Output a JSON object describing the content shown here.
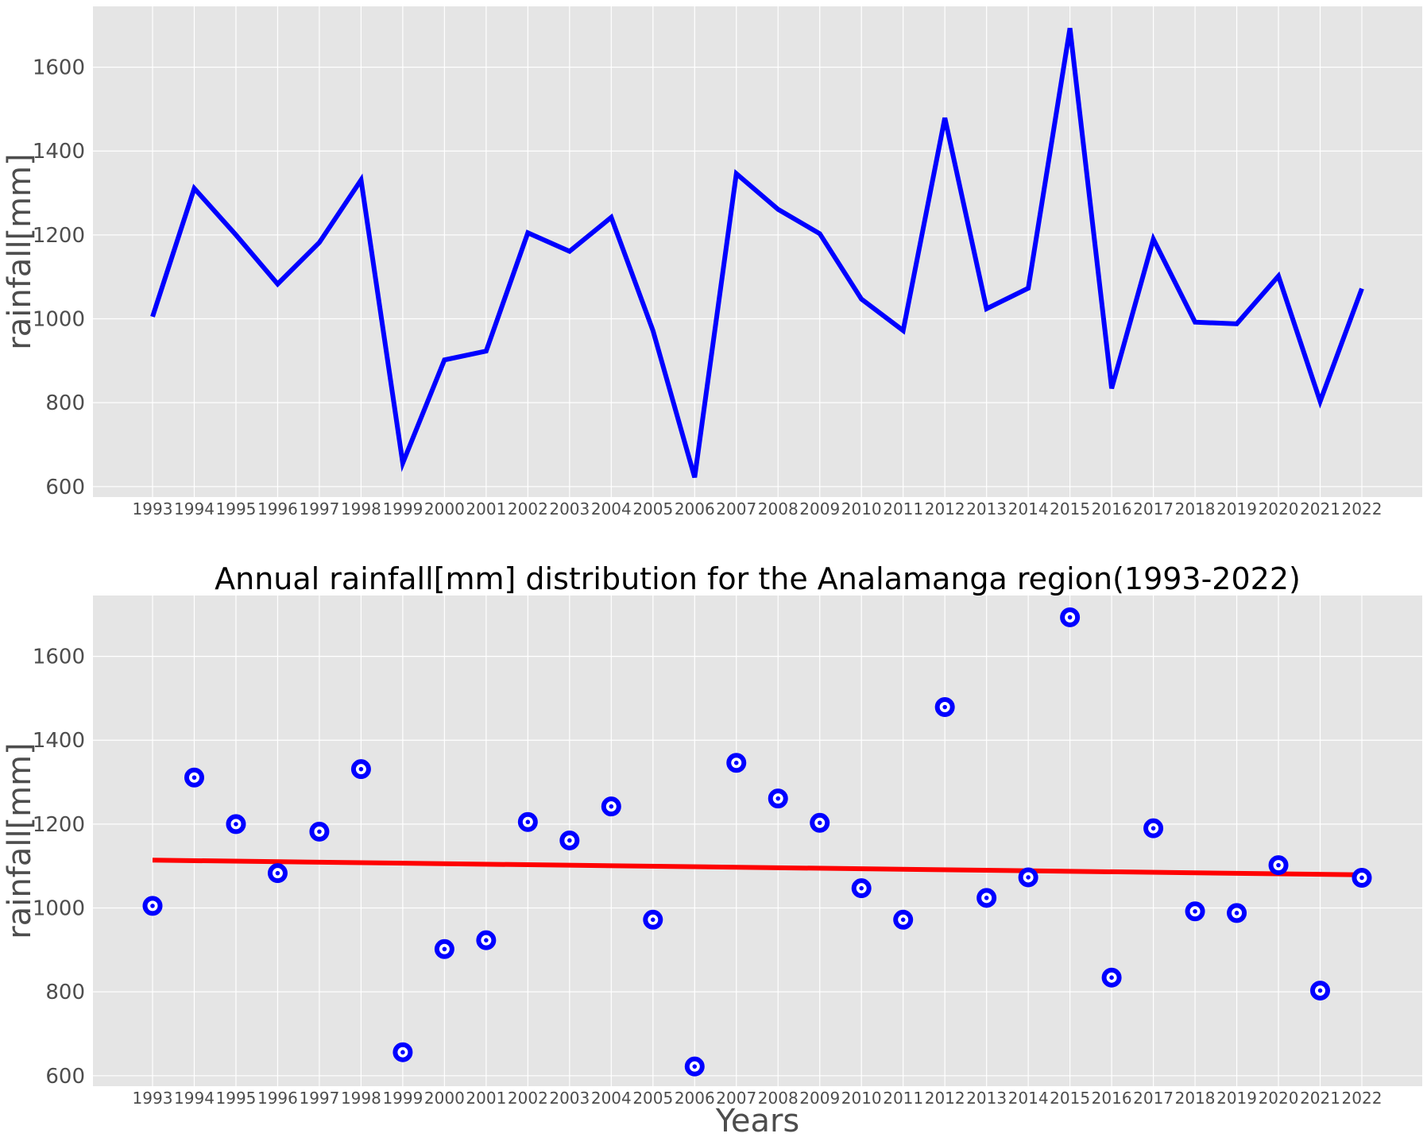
{
  "colors": {
    "panel_bg": "#e5e5e5",
    "grid": "#ffffff",
    "line": "#0000ff",
    "trend": "#ff0000",
    "tick_text": "#4d4d4d",
    "title_text": "#000000"
  },
  "chart_data": [
    {
      "type": "line",
      "title": "",
      "xlabel": "",
      "ylabel": "rainfall[mm]",
      "ylim": [
        575,
        1745
      ],
      "yticks": [
        600,
        800,
        1000,
        1200,
        1400,
        1600
      ],
      "grid": true,
      "x": [
        "1993",
        "1994",
        "1995",
        "1996",
        "1997",
        "1998",
        "1999",
        "2000",
        "2001",
        "2002",
        "2003",
        "2004",
        "2005",
        "2006",
        "2007",
        "2008",
        "2009",
        "2010",
        "2011",
        "2012",
        "2013",
        "2014",
        "2015",
        "2016",
        "2017",
        "2018",
        "2019",
        "2020",
        "2021",
        "2022"
      ],
      "series": [
        {
          "values": [
            1005,
            1311,
            1200,
            1083,
            1182,
            1331,
            656,
            902,
            923,
            1205,
            1161,
            1242,
            972,
            622,
            1346,
            1261,
            1203,
            1047,
            972,
            1479,
            1024,
            1073,
            1693,
            834,
            1190,
            992,
            988,
            1102,
            803,
            1072
          ]
        }
      ]
    },
    {
      "type": "scatter",
      "title": "Annual rainfall[mm] distribution for the Analamanga region(1993-2022)",
      "xlabel": "Years",
      "ylabel": "rainfall[mm]",
      "ylim": [
        575,
        1745
      ],
      "yticks": [
        600,
        800,
        1000,
        1200,
        1400,
        1600
      ],
      "grid": true,
      "x": [
        "1993",
        "1994",
        "1995",
        "1996",
        "1997",
        "1998",
        "1999",
        "2000",
        "2001",
        "2002",
        "2003",
        "2004",
        "2005",
        "2006",
        "2007",
        "2008",
        "2009",
        "2010",
        "2011",
        "2012",
        "2013",
        "2014",
        "2015",
        "2016",
        "2017",
        "2018",
        "2019",
        "2020",
        "2021",
        "2022"
      ],
      "series": [
        {
          "values": [
            1005,
            1311,
            1200,
            1083,
            1182,
            1331,
            656,
            902,
            923,
            1205,
            1161,
            1242,
            972,
            622,
            1346,
            1261,
            1203,
            1047,
            972,
            1479,
            1024,
            1073,
            1693,
            834,
            1190,
            992,
            988,
            1102,
            803,
            1072
          ]
        }
      ],
      "trend_line": {
        "start": [
          "1993",
          1114
        ],
        "end": [
          "2022",
          1079
        ]
      }
    }
  ]
}
